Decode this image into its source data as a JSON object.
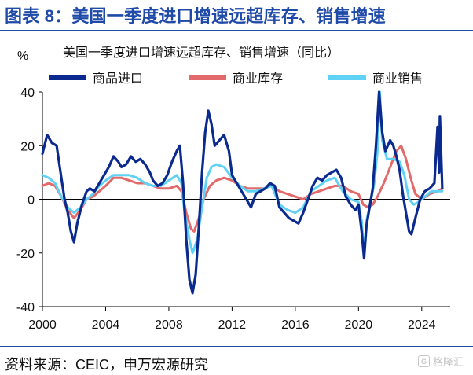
{
  "header": {
    "title": "图表 8：美国一季度进口增速远超库存、销售增速"
  },
  "footer": {
    "source": "资料来源：CEIC，申万宏源研究",
    "watermark": "格隆汇",
    "watermark_logo": "G"
  },
  "colors": {
    "imports": "#0a2a8f",
    "inventory": "#e26a6a",
    "sales": "#5fd2f5",
    "brand": "#1f4aa8",
    "zero_line": "#000000"
  },
  "chart_data": {
    "type": "line",
    "title": "美国一季度进口增速远超库存、销售增速（同比）",
    "ylabel": "%",
    "xlabel": "",
    "ylim": [
      -40,
      40
    ],
    "yticks": [
      -40,
      -20,
      0,
      20,
      40
    ],
    "xlim": [
      2000,
      2025.8
    ],
    "xticks": [
      2000,
      2004,
      2008,
      2012,
      2016,
      2020,
      2024
    ],
    "legend_position": "top",
    "series": [
      {
        "name": "商品进口",
        "color": "#0a2a8f",
        "points": [
          [
            2000.0,
            17
          ],
          [
            2000.3,
            24
          ],
          [
            2000.6,
            21
          ],
          [
            2000.9,
            20
          ],
          [
            2001.2,
            8
          ],
          [
            2001.4,
            0
          ],
          [
            2001.6,
            -5
          ],
          [
            2001.8,
            -12
          ],
          [
            2002.0,
            -16
          ],
          [
            2002.2,
            -9
          ],
          [
            2002.5,
            -2
          ],
          [
            2002.8,
            3
          ],
          [
            2003.0,
            4
          ],
          [
            2003.3,
            3
          ],
          [
            2003.6,
            6
          ],
          [
            2003.9,
            9
          ],
          [
            2004.2,
            12
          ],
          [
            2004.5,
            16
          ],
          [
            2004.8,
            14
          ],
          [
            2005.0,
            12
          ],
          [
            2005.3,
            13
          ],
          [
            2005.6,
            16
          ],
          [
            2005.9,
            14
          ],
          [
            2006.2,
            15
          ],
          [
            2006.5,
            13
          ],
          [
            2006.8,
            10
          ],
          [
            2007.0,
            7
          ],
          [
            2007.3,
            5
          ],
          [
            2007.6,
            6
          ],
          [
            2007.9,
            9
          ],
          [
            2008.2,
            14
          ],
          [
            2008.5,
            18
          ],
          [
            2008.7,
            20
          ],
          [
            2008.9,
            6
          ],
          [
            2009.1,
            -15
          ],
          [
            2009.3,
            -30
          ],
          [
            2009.5,
            -35
          ],
          [
            2009.7,
            -28
          ],
          [
            2009.9,
            -10
          ],
          [
            2010.1,
            10
          ],
          [
            2010.3,
            25
          ],
          [
            2010.5,
            33
          ],
          [
            2010.7,
            28
          ],
          [
            2010.9,
            20
          ],
          [
            2011.2,
            22
          ],
          [
            2011.5,
            24
          ],
          [
            2011.8,
            18
          ],
          [
            2012.0,
            9
          ],
          [
            2012.3,
            6
          ],
          [
            2012.6,
            3
          ],
          [
            2012.9,
            0
          ],
          [
            2013.2,
            -3
          ],
          [
            2013.5,
            2
          ],
          [
            2013.8,
            3
          ],
          [
            2014.1,
            4
          ],
          [
            2014.4,
            6
          ],
          [
            2014.7,
            5
          ],
          [
            2015.0,
            -3
          ],
          [
            2015.3,
            -5
          ],
          [
            2015.6,
            -7
          ],
          [
            2015.9,
            -8
          ],
          [
            2016.2,
            -9
          ],
          [
            2016.5,
            -5
          ],
          [
            2016.8,
            0
          ],
          [
            2017.1,
            5
          ],
          [
            2017.4,
            8
          ],
          [
            2017.7,
            7
          ],
          [
            2018.0,
            9
          ],
          [
            2018.3,
            10
          ],
          [
            2018.6,
            11
          ],
          [
            2018.9,
            8
          ],
          [
            2019.2,
            1
          ],
          [
            2019.5,
            -2
          ],
          [
            2019.8,
            -4
          ],
          [
            2020.0,
            -2
          ],
          [
            2020.2,
            -12
          ],
          [
            2020.35,
            -22
          ],
          [
            2020.5,
            -10
          ],
          [
            2020.7,
            -3
          ],
          [
            2020.9,
            4
          ],
          [
            2021.1,
            20
          ],
          [
            2021.3,
            40
          ],
          [
            2021.5,
            25
          ],
          [
            2021.7,
            18
          ],
          [
            2022.0,
            22
          ],
          [
            2022.2,
            20
          ],
          [
            2022.4,
            16
          ],
          [
            2022.6,
            11
          ],
          [
            2022.8,
            2
          ],
          [
            2023.0,
            -5
          ],
          [
            2023.2,
            -12
          ],
          [
            2023.35,
            -13
          ],
          [
            2023.6,
            -7
          ],
          [
            2023.9,
            0
          ],
          [
            2024.2,
            3
          ],
          [
            2024.5,
            4
          ],
          [
            2024.8,
            6
          ],
          [
            2025.0,
            27
          ],
          [
            2025.1,
            10
          ],
          [
            2025.15,
            31
          ],
          [
            2025.3,
            4
          ]
        ]
      },
      {
        "name": "商业库存",
        "color": "#e26a6a",
        "points": [
          [
            2000.0,
            5
          ],
          [
            2000.4,
            6
          ],
          [
            2000.8,
            5
          ],
          [
            2001.2,
            1
          ],
          [
            2001.6,
            -4
          ],
          [
            2002.0,
            -7
          ],
          [
            2002.4,
            -4
          ],
          [
            2002.8,
            0
          ],
          [
            2003.2,
            1
          ],
          [
            2003.6,
            3
          ],
          [
            2004.0,
            5
          ],
          [
            2004.5,
            8
          ],
          [
            2005.0,
            8
          ],
          [
            2005.5,
            7
          ],
          [
            2006.0,
            6
          ],
          [
            2006.5,
            6
          ],
          [
            2007.0,
            5
          ],
          [
            2007.5,
            4
          ],
          [
            2008.0,
            4
          ],
          [
            2008.5,
            5
          ],
          [
            2008.8,
            3
          ],
          [
            2009.1,
            -5
          ],
          [
            2009.4,
            -11
          ],
          [
            2009.6,
            -12
          ],
          [
            2009.9,
            -7
          ],
          [
            2010.2,
            0
          ],
          [
            2010.6,
            5
          ],
          [
            2011.0,
            7
          ],
          [
            2011.5,
            8
          ],
          [
            2012.0,
            7
          ],
          [
            2012.5,
            5
          ],
          [
            2013.0,
            4
          ],
          [
            2013.5,
            4
          ],
          [
            2014.0,
            4
          ],
          [
            2014.5,
            5
          ],
          [
            2015.0,
            3
          ],
          [
            2015.5,
            2
          ],
          [
            2016.0,
            1
          ],
          [
            2016.5,
            0
          ],
          [
            2017.0,
            2
          ],
          [
            2017.5,
            3
          ],
          [
            2018.0,
            4
          ],
          [
            2018.5,
            5
          ],
          [
            2019.0,
            5
          ],
          [
            2019.5,
            3
          ],
          [
            2020.0,
            2
          ],
          [
            2020.3,
            -2
          ],
          [
            2020.6,
            -3
          ],
          [
            2020.9,
            -2
          ],
          [
            2021.2,
            1
          ],
          [
            2021.6,
            6
          ],
          [
            2022.0,
            12
          ],
          [
            2022.4,
            18
          ],
          [
            2022.7,
            20
          ],
          [
            2023.0,
            15
          ],
          [
            2023.3,
            8
          ],
          [
            2023.6,
            2
          ],
          [
            2024.0,
            0
          ],
          [
            2024.5,
            2
          ],
          [
            2025.0,
            3
          ],
          [
            2025.3,
            4
          ]
        ]
      },
      {
        "name": "商业销售",
        "color": "#5fd2f5",
        "points": [
          [
            2000.0,
            9
          ],
          [
            2000.4,
            8
          ],
          [
            2000.8,
            6
          ],
          [
            2001.2,
            1
          ],
          [
            2001.6,
            -3
          ],
          [
            2002.0,
            -5
          ],
          [
            2002.4,
            -3
          ],
          [
            2002.8,
            0
          ],
          [
            2003.2,
            2
          ],
          [
            2003.6,
            5
          ],
          [
            2004.0,
            7
          ],
          [
            2004.5,
            9
          ],
          [
            2005.0,
            9
          ],
          [
            2005.5,
            9
          ],
          [
            2006.0,
            8
          ],
          [
            2006.5,
            6
          ],
          [
            2007.0,
            5
          ],
          [
            2007.5,
            5
          ],
          [
            2008.0,
            7
          ],
          [
            2008.5,
            9
          ],
          [
            2008.8,
            6
          ],
          [
            2009.0,
            -5
          ],
          [
            2009.3,
            -15
          ],
          [
            2009.5,
            -20
          ],
          [
            2009.8,
            -15
          ],
          [
            2010.1,
            -3
          ],
          [
            2010.4,
            8
          ],
          [
            2010.7,
            12
          ],
          [
            2011.0,
            13
          ],
          [
            2011.5,
            12
          ],
          [
            2012.0,
            8
          ],
          [
            2012.5,
            5
          ],
          [
            2013.0,
            3
          ],
          [
            2013.5,
            3
          ],
          [
            2014.0,
            4
          ],
          [
            2014.5,
            5
          ],
          [
            2015.0,
            -2
          ],
          [
            2015.5,
            -4
          ],
          [
            2016.0,
            -5
          ],
          [
            2016.5,
            -3
          ],
          [
            2017.0,
            3
          ],
          [
            2017.5,
            5
          ],
          [
            2018.0,
            7
          ],
          [
            2018.5,
            8
          ],
          [
            2019.0,
            3
          ],
          [
            2019.5,
            0
          ],
          [
            2020.0,
            -1
          ],
          [
            2020.2,
            -8
          ],
          [
            2020.35,
            -20
          ],
          [
            2020.5,
            -8
          ],
          [
            2020.8,
            0
          ],
          [
            2021.0,
            6
          ],
          [
            2021.2,
            18
          ],
          [
            2021.35,
            40
          ],
          [
            2021.5,
            22
          ],
          [
            2021.8,
            15
          ],
          [
            2022.2,
            15
          ],
          [
            2022.6,
            14
          ],
          [
            2022.9,
            9
          ],
          [
            2023.2,
            0
          ],
          [
            2023.5,
            -2
          ],
          [
            2023.8,
            -1
          ],
          [
            2024.2,
            1
          ],
          [
            2024.6,
            3
          ],
          [
            2025.0,
            3
          ],
          [
            2025.3,
            3
          ]
        ]
      }
    ]
  }
}
